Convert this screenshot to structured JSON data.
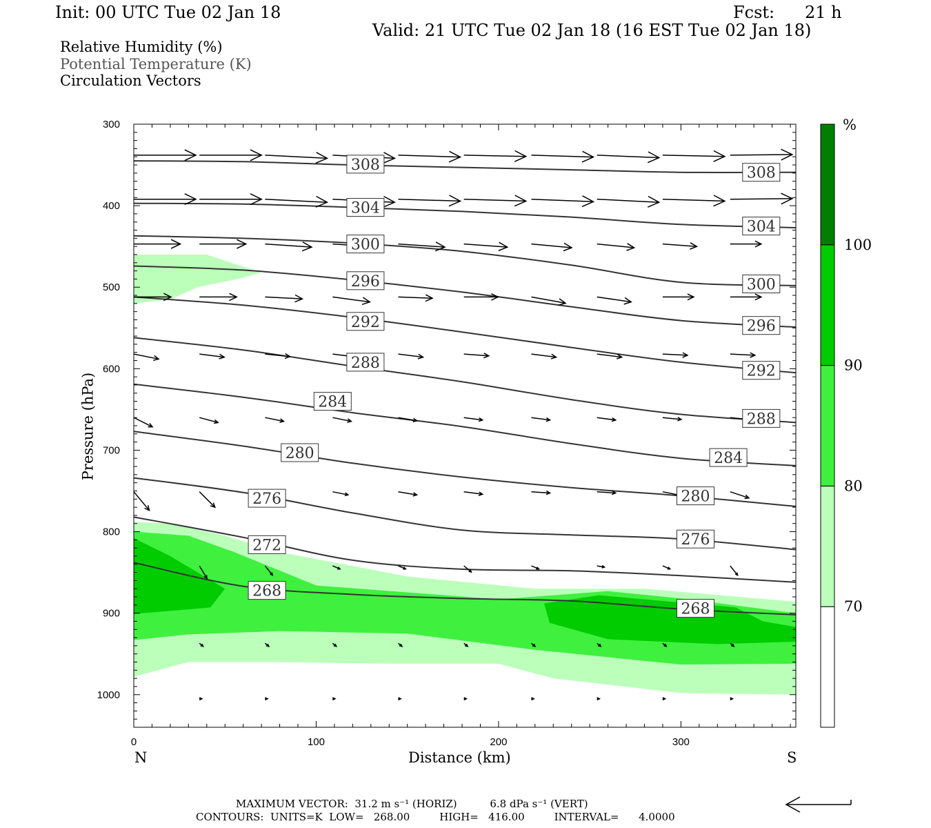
{
  "header": {
    "init": "Init: 00 UTC Tue 02 Jan 18",
    "fcst_label": "Fcst:",
    "fcst_value": "21 h",
    "valid": "Valid: 21 UTC Tue 02 Jan 18 (16 EST Tue 02 Jan 18)"
  },
  "legend": {
    "items": [
      "Relative Humidity (%)",
      "Potential Temperature (K)",
      "Circulation Vectors"
    ]
  },
  "footer": {
    "line1": "MAXIMUM VECTOR:  31.2 m s⁻¹ (HORIZ)          6.8 dPa s⁻¹ (VERT)",
    "line2": "CONTOURS:  UNITS=K  LOW=   268.00         HIGH=   416.00         INTERVAL=      4.0000"
  },
  "colors": {
    "rh_70_80": "#bbffbb",
    "rh_80_90": "#3ff03f",
    "rh_90_100": "#00cc00",
    "rh_100": "#007e00",
    "contour": "#333333",
    "vector": "#000000"
  },
  "chart_data": {
    "type": "cross-section",
    "xlabel": "Distance (km)",
    "ylabel": "Pressure (hPa)",
    "xlim": [
      0,
      363
    ],
    "ylim": [
      1040,
      300
    ],
    "x_ticks": [
      "0",
      "100",
      "200",
      "300"
    ],
    "y_ticks": [
      "300",
      "400",
      "500",
      "600",
      "700",
      "800",
      "900",
      "1000"
    ],
    "x_end_labels": {
      "left": "N",
      "right": "S"
    },
    "colorbar": {
      "unit": "%",
      "levels": [
        "70",
        "80",
        "90",
        "100"
      ],
      "colors": [
        "#ffffff",
        "#bbffbb",
        "#3ff03f",
        "#00cc00",
        "#007e00"
      ]
    },
    "theta_contours": [
      {
        "value": 308,
        "x": [
          0,
          60,
          120,
          180,
          240,
          300,
          363
        ],
        "p": [
          345,
          346,
          350,
          353,
          356,
          359,
          359
        ]
      },
      {
        "value": 304,
        "x": [
          0,
          60,
          120,
          180,
          240,
          300,
          363
        ],
        "p": [
          397,
          398,
          402,
          407,
          414,
          423,
          427
        ]
      },
      {
        "value": 300,
        "x": [
          0,
          60,
          120,
          180,
          240,
          300,
          363
        ],
        "p": [
          437,
          440,
          446,
          456,
          473,
          494,
          498
        ]
      },
      {
        "value": 296,
        "x": [
          0,
          60,
          120,
          180,
          240,
          300,
          363
        ],
        "p": [
          474,
          479,
          491,
          506,
          524,
          541,
          549
        ]
      },
      {
        "value": 292,
        "x": [
          0,
          60,
          120,
          180,
          240,
          300,
          363
        ],
        "p": [
          512,
          522,
          537,
          555,
          574,
          592,
          605
        ]
      },
      {
        "value": 288,
        "x": [
          0,
          60,
          120,
          180,
          240,
          300,
          363
        ],
        "p": [
          562,
          577,
          597,
          616,
          638,
          656,
          666
        ]
      },
      {
        "value": 284,
        "x": [
          0,
          60,
          120,
          180,
          240,
          300,
          363
        ],
        "p": [
          619,
          635,
          654,
          671,
          692,
          710,
          719
        ]
      },
      {
        "value": 280,
        "x": [
          0,
          60,
          120,
          180,
          240,
          300,
          363
        ],
        "p": [
          677,
          695,
          716,
          733,
          746,
          756,
          769
        ]
      },
      {
        "value": 276,
        "x": [
          0,
          60,
          120,
          180,
          240,
          300,
          363
        ],
        "p": [
          734,
          752,
          777,
          798,
          804,
          809,
          822
        ]
      },
      {
        "value": 272,
        "x": [
          0,
          60,
          120,
          180,
          240,
          300,
          363
        ],
        "p": [
          782,
          807,
          835,
          846,
          848,
          854,
          862
        ]
      },
      {
        "value": 268,
        "x": [
          0,
          60,
          120,
          180,
          240,
          300,
          363
        ],
        "p": [
          838,
          867,
          877,
          882,
          885,
          895,
          902
        ]
      }
    ],
    "contour_labels": [
      {
        "text": "308",
        "x": 127,
        "p": 349
      },
      {
        "text": "308",
        "x": 344,
        "p": 359
      },
      {
        "text": "304",
        "x": 127,
        "p": 402
      },
      {
        "text": "304",
        "x": 344,
        "p": 425
      },
      {
        "text": "300",
        "x": 127,
        "p": 447
      },
      {
        "text": "300",
        "x": 344,
        "p": 496
      },
      {
        "text": "296",
        "x": 127,
        "p": 492
      },
      {
        "text": "296",
        "x": 344,
        "p": 547
      },
      {
        "text": "292",
        "x": 127,
        "p": 542
      },
      {
        "text": "292",
        "x": 344,
        "p": 602
      },
      {
        "text": "288",
        "x": 127,
        "p": 592
      },
      {
        "text": "288",
        "x": 344,
        "p": 661
      },
      {
        "text": "284",
        "x": 109,
        "p": 640
      },
      {
        "text": "284",
        "x": 326,
        "p": 709
      },
      {
        "text": "280",
        "x": 91,
        "p": 703
      },
      {
        "text": "280",
        "x": 308,
        "p": 756
      },
      {
        "text": "276",
        "x": 73,
        "p": 759
      },
      {
        "text": "276",
        "x": 308,
        "p": 809
      },
      {
        "text": "272",
        "x": 73,
        "p": 816
      },
      {
        "text": "268",
        "x": 73,
        "p": 872
      },
      {
        "text": "268",
        "x": 308,
        "p": 894
      }
    ],
    "rh_regions": [
      {
        "level": "70-80",
        "x": [
          0,
          20,
          50,
          80,
          150,
          220,
          280,
          363,
          363,
          300,
          230,
          200,
          140,
          80,
          30,
          10,
          0
        ],
        "p": [
          788,
          790,
          805,
          825,
          855,
          870,
          870,
          886,
          1000,
          998,
          980,
          962,
          962,
          960,
          960,
          972,
          978
        ]
      },
      {
        "level": "70-80",
        "x": [
          0,
          40,
          70,
          57,
          35,
          20,
          0
        ],
        "p": [
          460,
          460,
          482,
          490,
          500,
          515,
          520
        ]
      },
      {
        "level": "80-90",
        "x": [
          0,
          30,
          55,
          100,
          200,
          260,
          300,
          363,
          363,
          300,
          220,
          150,
          80,
          30,
          0
        ],
        "p": [
          800,
          805,
          825,
          866,
          883,
          873,
          882,
          900,
          962,
          963,
          945,
          925,
          922,
          926,
          933
        ]
      },
      {
        "level": "90-100",
        "x": [
          0,
          20,
          50,
          42,
          0
        ],
        "p": [
          808,
          830,
          870,
          893,
          901
        ]
      },
      {
        "level": "90-100",
        "x": [
          225,
          255,
          330,
          345,
          363,
          363,
          320,
          260,
          228
        ],
        "p": [
          888,
          878,
          893,
          910,
          917,
          935,
          938,
          932,
          912
        ]
      }
    ],
    "vector_max": {
      "horiz_ms": 31.2,
      "vert_dPa_s": 6.8
    },
    "vectors": [
      {
        "p": 338,
        "x": [
          0,
          36,
          72,
          109,
          145,
          181,
          218,
          254,
          290,
          327
        ],
        "u": [
          1,
          1,
          1,
          1,
          1,
          1,
          1,
          1,
          1,
          1
        ],
        "w": [
          0,
          0,
          0.05,
          0.05,
          0.03,
          0.02,
          0.03,
          0.04,
          0.02,
          -0.01
        ]
      },
      {
        "p": 392,
        "x": [
          0,
          36,
          72,
          109,
          145,
          181,
          218,
          254,
          290,
          327
        ],
        "u": [
          1,
          1,
          1,
          1,
          1,
          1,
          1,
          1,
          1,
          1
        ],
        "w": [
          0,
          0,
          0.05,
          0.05,
          0.03,
          0.03,
          0.04,
          0.05,
          0.03,
          -0.01
        ]
      },
      {
        "p": 447,
        "x": [
          0,
          36,
          72,
          109,
          145,
          181,
          218,
          254,
          290,
          327
        ],
        "u": [
          0.75,
          0.75,
          0.75,
          0.75,
          0.75,
          0.7,
          0.65,
          0.6,
          0.55,
          0.5
        ],
        "w": [
          0,
          0,
          0.05,
          0.05,
          0.05,
          0.05,
          0.06,
          0.06,
          0.04,
          0
        ]
      },
      {
        "p": 512,
        "x": [
          0,
          36,
          72,
          109,
          145,
          181,
          218,
          254,
          290,
          327
        ],
        "u": [
          0.6,
          0.6,
          0.6,
          0.6,
          0.55,
          0.55,
          0.55,
          0.55,
          0.5,
          0.5
        ],
        "w": [
          0,
          0,
          0.03,
          0.08,
          0.02,
          0,
          0.1,
          0.08,
          0,
          0
        ]
      },
      {
        "p": 582,
        "x": [
          0,
          36,
          72,
          109,
          145,
          181,
          218,
          254,
          290,
          327
        ],
        "u": [
          0.4,
          0.4,
          0.4,
          0.4,
          0.4,
          0.4,
          0.4,
          0.4,
          0.4,
          0.4
        ],
        "w": [
          0.08,
          0.05,
          0.04,
          0.05,
          0.05,
          0.03,
          0.05,
          0.05,
          0.02,
          0.02
        ]
      },
      {
        "p": 660,
        "x": [
          0,
          36,
          72,
          109,
          145,
          181,
          218,
          254,
          290,
          327
        ],
        "u": [
          0.3,
          0.3,
          0.3,
          0.3,
          0.3,
          0.3,
          0.3,
          0.3,
          0.3,
          0.3
        ],
        "w": [
          0.15,
          0.08,
          0.06,
          0.06,
          0.05,
          0.04,
          0.04,
          0.04,
          0.03,
          0.03
        ]
      },
      {
        "p": 751,
        "x": [
          0,
          36,
          72,
          109,
          145,
          181,
          218,
          254,
          290,
          327
        ],
        "u": [
          0.25,
          0.25,
          0.25,
          0.25,
          0.3,
          0.3,
          0.3,
          0.3,
          0.3,
          0.3
        ],
        "w": [
          0.3,
          0.25,
          0.1,
          0.05,
          0.05,
          0.04,
          0.02,
          0.02,
          0.06,
          0.1
        ]
      },
      {
        "p": 842,
        "x": [
          36,
          72,
          109,
          145,
          181,
          218,
          254,
          290,
          327
        ],
        "u": [
          0.12,
          0.12,
          0.12,
          0.12,
          0.12,
          0.12,
          0.12,
          0.12,
          0.12
        ],
        "w": [
          0.2,
          0.15,
          0.05,
          0.05,
          0.1,
          0.05,
          0.02,
          0.05,
          0.15
        ]
      },
      {
        "p": 937,
        "x": [
          36,
          72,
          109,
          145,
          181,
          218,
          254,
          290,
          327
        ],
        "u": [
          0.06,
          0.06,
          0.06,
          0.06,
          0.06,
          0.06,
          0.06,
          0.06,
          0.06
        ],
        "w": [
          0.05,
          0.05,
          0.05,
          0.05,
          0.05,
          0.05,
          0.05,
          0.05,
          0.05
        ]
      },
      {
        "p": 1005,
        "x": [
          36,
          72,
          109,
          145,
          181,
          218,
          254,
          290,
          327
        ],
        "u": [
          0.04,
          0.04,
          0.04,
          0.04,
          0.04,
          0.04,
          0.04,
          0.04,
          0.04
        ],
        "w": [
          0,
          0,
          0,
          0,
          0,
          0,
          0,
          0,
          0
        ]
      }
    ]
  }
}
